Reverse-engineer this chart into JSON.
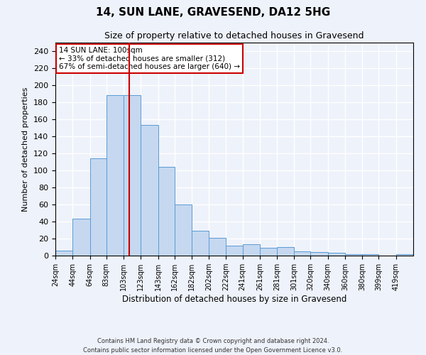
{
  "title": "14, SUN LANE, GRAVESEND, DA12 5HG",
  "subtitle": "Size of property relative to detached houses in Gravesend",
  "xlabel": "Distribution of detached houses by size in Gravesend",
  "ylabel": "Number of detached properties",
  "bar_color": "#c5d8f0",
  "bar_edge_color": "#5b9bd5",
  "background_color": "#eef2fa",
  "grid_color": "#ffffff",
  "vline_x": 100,
  "vline_color": "#cc0000",
  "annotation_line1": "14 SUN LANE: 100sqm",
  "annotation_line2": "← 33% of detached houses are smaller (312)",
  "annotation_line3": "67% of semi-detached houses are larger (640) →",
  "annotation_box_color": "#ffffff",
  "annotation_box_edge": "#cc0000",
  "bin_labels": [
    "24sqm",
    "44sqm",
    "64sqm",
    "83sqm",
    "103sqm",
    "123sqm",
    "143sqm",
    "162sqm",
    "182sqm",
    "202sqm",
    "222sqm",
    "241sqm",
    "261sqm",
    "281sqm",
    "301sqm",
    "320sqm",
    "340sqm",
    "360sqm",
    "380sqm",
    "399sqm",
    "419sqm"
  ],
  "bin_edges": [
    14,
    34,
    54,
    73,
    93,
    113,
    133,
    152,
    172,
    192,
    212,
    231,
    251,
    271,
    291,
    310,
    330,
    350,
    370,
    389,
    409,
    429
  ],
  "values": [
    6,
    43,
    114,
    188,
    188,
    153,
    104,
    60,
    29,
    21,
    12,
    13,
    9,
    10,
    5,
    4,
    3,
    2,
    2,
    0,
    2
  ],
  "ylim": [
    0,
    250
  ],
  "yticks": [
    0,
    20,
    40,
    60,
    80,
    100,
    120,
    140,
    160,
    180,
    200,
    220,
    240
  ],
  "footer_line1": "Contains HM Land Registry data © Crown copyright and database right 2024.",
  "footer_line2": "Contains public sector information licensed under the Open Government Licence v3.0."
}
